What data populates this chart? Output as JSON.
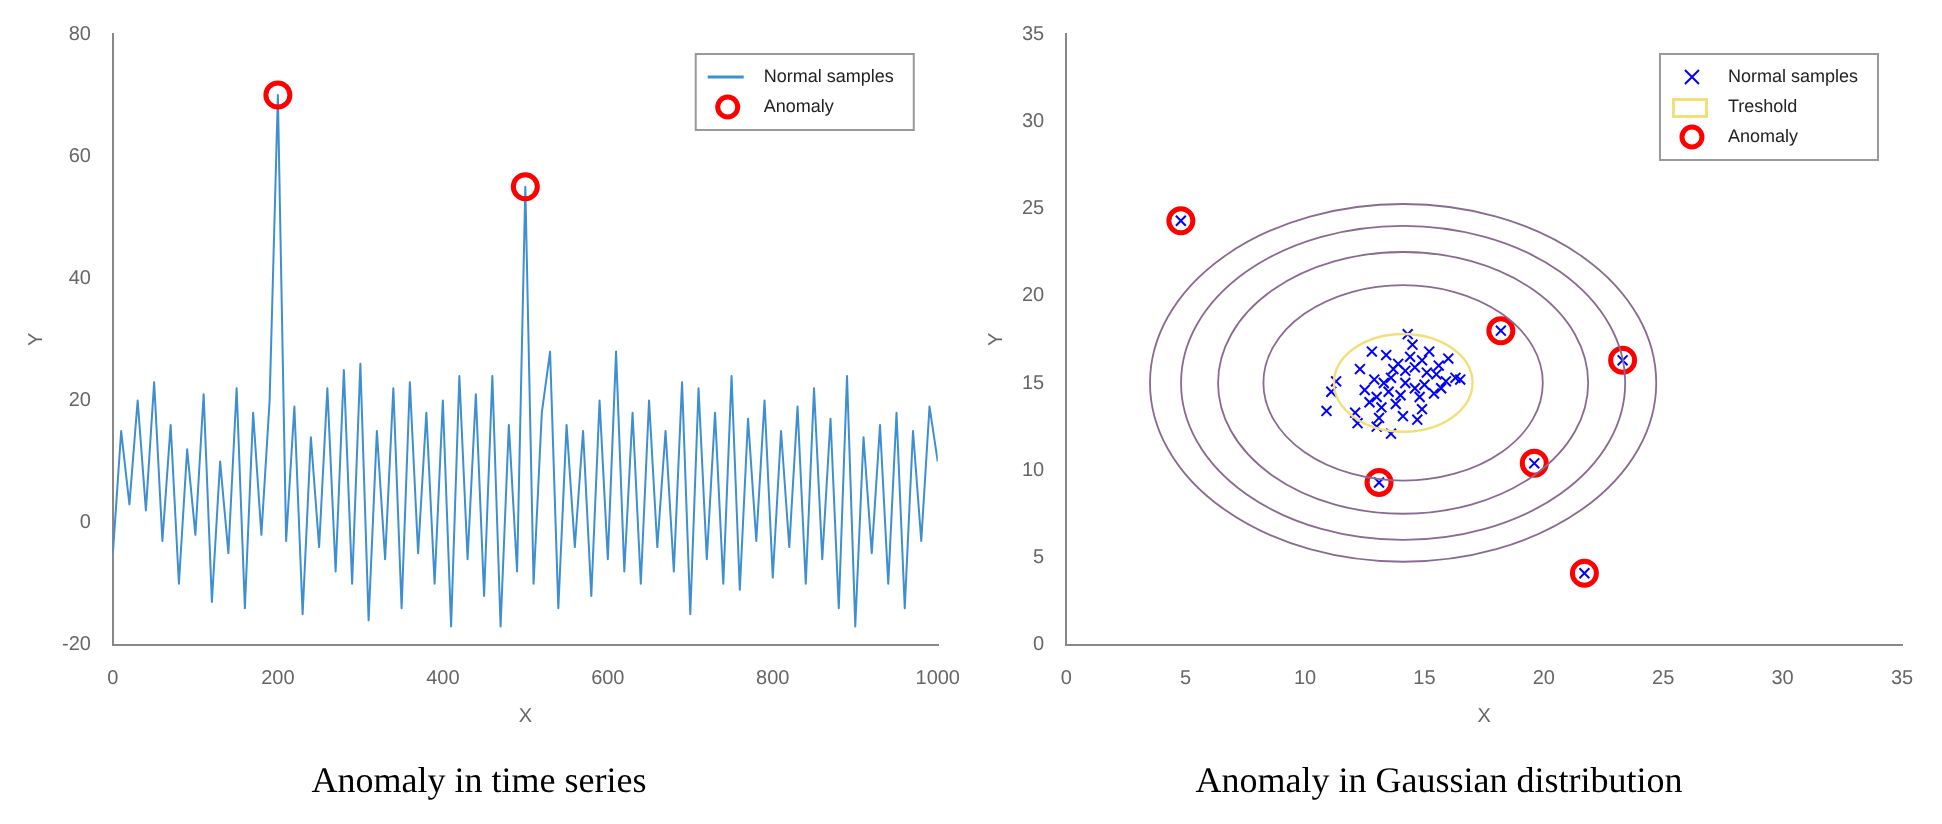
{
  "chart_data": [
    {
      "type": "line",
      "title": "Anomaly in time series",
      "xlabel": "X",
      "ylabel": "Y",
      "xlim": [
        0,
        1000
      ],
      "xticks": [
        0,
        200,
        400,
        600,
        800,
        1000
      ],
      "ylim": [
        -20,
        80
      ],
      "yticks": [
        -20,
        0,
        20,
        40,
        60,
        80
      ],
      "grid": false,
      "legend": "top right",
      "series": [
        {
          "name": "Normal samples",
          "marker": "none",
          "color": "#3d8fd1",
          "x": [
            0,
            10,
            20,
            30,
            40,
            50,
            60,
            70,
            80,
            90,
            100,
            110,
            120,
            130,
            140,
            150,
            160,
            170,
            180,
            190,
            200,
            210,
            220,
            230,
            240,
            250,
            260,
            270,
            280,
            290,
            300,
            310,
            320,
            330,
            340,
            350,
            360,
            370,
            380,
            390,
            400,
            410,
            420,
            430,
            440,
            450,
            460,
            470,
            480,
            490,
            500,
            510,
            520,
            530,
            540,
            550,
            560,
            570,
            580,
            590,
            600,
            610,
            620,
            630,
            640,
            650,
            660,
            670,
            680,
            690,
            700,
            710,
            720,
            730,
            740,
            750,
            760,
            770,
            780,
            790,
            800,
            810,
            820,
            830,
            840,
            850,
            860,
            870,
            880,
            890,
            900,
            910,
            920,
            930,
            940,
            950,
            960,
            970,
            980,
            990,
            1000
          ],
          "values": [
            -5,
            15,
            3,
            20,
            2,
            23,
            -3,
            16,
            -10,
            12,
            -2,
            21,
            -13,
            10,
            -5,
            22,
            -14,
            18,
            -2,
            20,
            70,
            -3,
            19,
            -15,
            14,
            -4,
            22,
            -8,
            25,
            -10,
            26,
            -16,
            15,
            -6,
            22,
            -14,
            23,
            -5,
            18,
            -10,
            20,
            -17,
            24,
            -6,
            21,
            -12,
            24,
            -17,
            16,
            -8,
            55,
            -10,
            18,
            28,
            -14,
            16,
            -4,
            15,
            -12,
            20,
            -6,
            28,
            -8,
            18,
            -10,
            20,
            -4,
            15,
            -8,
            23,
            -15,
            22,
            -6,
            18,
            -10,
            24,
            -11,
            17,
            -3,
            20,
            -9,
            15,
            -4,
            19,
            -10,
            22,
            -6,
            17,
            -14,
            24,
            -17,
            14,
            -5,
            16,
            -10,
            18,
            -14,
            15,
            -3,
            19,
            10
          ]
        },
        {
          "name": "Anomaly",
          "type": "scatter",
          "marker": "circle",
          "color": "#ff0000",
          "x": [
            200,
            500
          ],
          "values": [
            70,
            55
          ]
        }
      ]
    },
    {
      "type": "scatter",
      "title": "Anomaly in Gaussian distribution",
      "xlabel": "X",
      "ylabel": "Y",
      "xlim": [
        0,
        35
      ],
      "xticks": [
        0,
        5,
        10,
        15,
        20,
        25,
        30,
        35
      ],
      "ylim": [
        0,
        35
      ],
      "yticks": [
        0,
        5,
        10,
        15,
        20,
        25,
        30,
        35
      ],
      "grid": false,
      "legend": "top right",
      "annotations": [
        "Treshold"
      ],
      "series": [
        {
          "name": "Normal samples",
          "marker": "cross",
          "color": "#0000ff",
          "x": [
            14.2,
            13.5,
            15.1,
            14.8,
            13.9,
            15.6,
            12.9,
            14.5,
            14.3,
            13.2,
            15.9,
            16.3,
            12.5,
            11.1,
            10.9,
            11.3,
            12.1,
            12.2,
            13.0,
            13.6,
            14.1,
            14.9,
            15.4,
            16.0,
            15.2,
            13.4,
            12.8,
            13.7,
            14.6,
            14.0,
            15.0,
            13.3,
            14.4,
            12.7,
            13.1,
            16.5,
            15.7,
            14.7,
            13.8,
            14.9,
            12.3,
            13.0,
            15.5,
            14.2,
            13.6,
            14.6,
            4.8,
            18.2,
            23.3,
            19.6,
            13.1,
            21.7
          ],
          "values": [
            15.0,
            14.5,
            15.6,
            14.2,
            16.1,
            16.0,
            15.2,
            17.2,
            17.8,
            13.6,
            15.1,
            15.3,
            14.6,
            14.5,
            13.4,
            15.1,
            13.3,
            12.7,
            12.5,
            12.1,
            13.1,
            13.5,
            14.4,
            16.4,
            16.8,
            16.6,
            16.8,
            15.8,
            15.9,
            14.3,
            14.9,
            15.0,
            16.5,
            13.9,
            13.0,
            15.2,
            14.7,
            12.9,
            13.8,
            16.3,
            15.8,
            14.2,
            15.5,
            15.7,
            15.3,
            14.7,
            24.3,
            18.0,
            16.3,
            10.4,
            9.3,
            4.1
          ]
        },
        {
          "name": "Anomaly",
          "marker": "circle",
          "color": "#ff0000",
          "x": [
            4.8,
            18.2,
            23.3,
            19.6,
            13.1,
            21.7
          ],
          "values": [
            24.3,
            18.0,
            16.3,
            10.4,
            9.3,
            4.1
          ]
        }
      ]
    }
  ]
}
